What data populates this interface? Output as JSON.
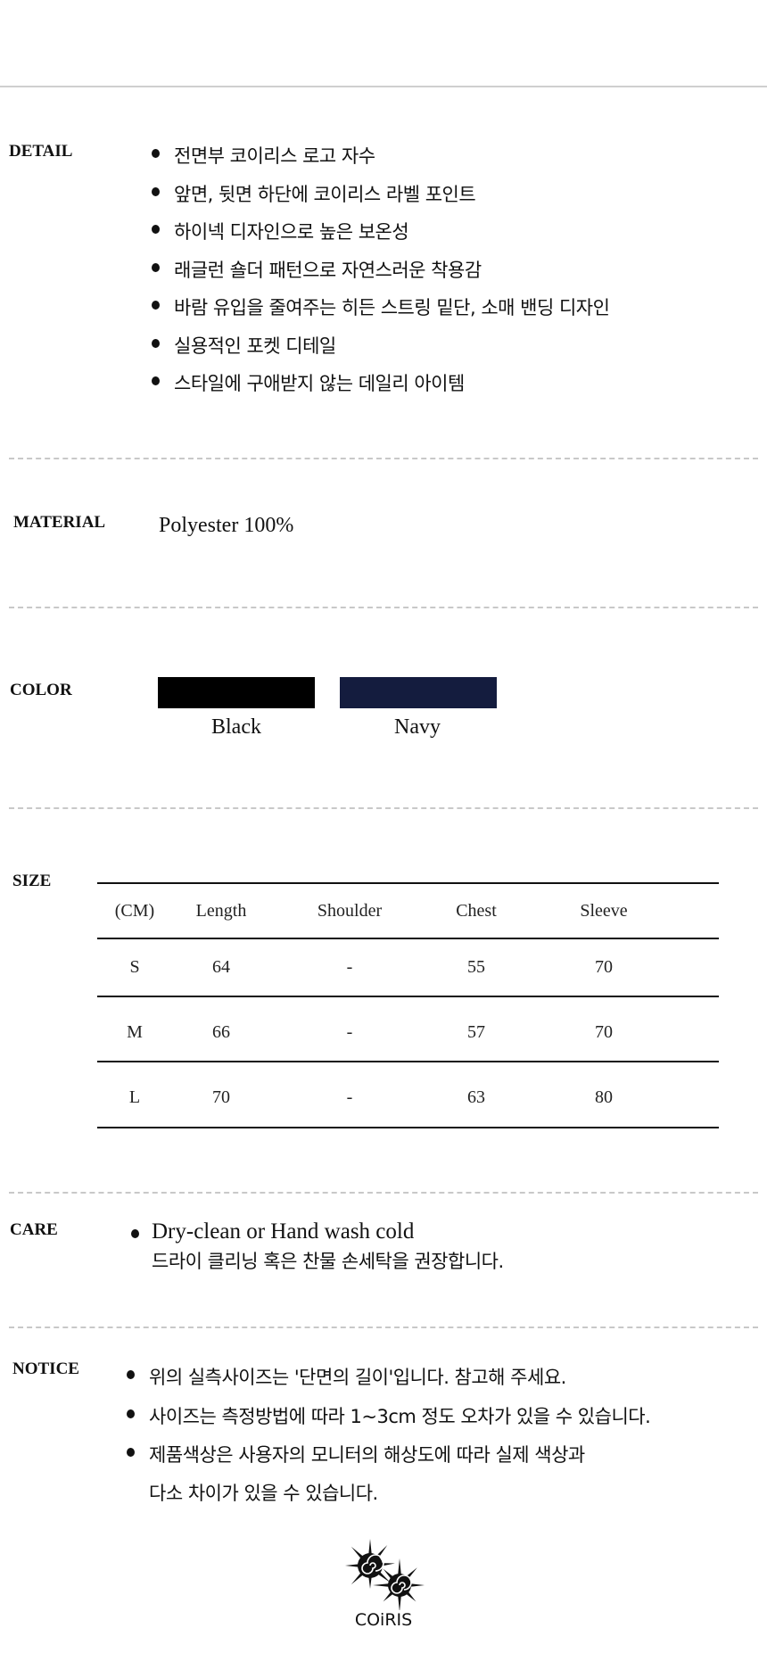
{
  "detail": {
    "label": "DETAIL",
    "items": [
      "전면부 코이리스 로고 자수",
      "앞면, 뒷면 하단에 코이리스 라벨 포인트",
      "하이넥 디자인으로 높은 보온성",
      "래글런 숄더 패턴으로 자연스러운 착용감",
      "바람 유입을 줄여주는 히든 스트링 밑단, 소매 밴딩 디자인",
      "실용적인 포켓 디테일",
      "스타일에 구애받지 않는 데일리 아이템"
    ]
  },
  "material": {
    "label": "MATERIAL",
    "value": "Polyester 100%"
  },
  "color": {
    "label": "COLOR",
    "swatches": [
      {
        "name": "Black",
        "hex": "#000000"
      },
      {
        "name": "Navy",
        "hex": "#141c3e"
      }
    ]
  },
  "size": {
    "label": "SIZE",
    "headers": [
      "(CM)",
      "Length",
      "Shoulder",
      "Chest",
      "Sleeve"
    ],
    "rows": [
      [
        "S",
        "64",
        "-",
        "55",
        "70"
      ],
      [
        "M",
        "66",
        "-",
        "57",
        "70"
      ],
      [
        "L",
        "70",
        "-",
        "63",
        "80"
      ]
    ]
  },
  "care": {
    "label": "CARE",
    "line1": "Dry-clean or Hand wash cold",
    "line2": "드라이 클리닝 혹은 찬물 손세탁을 권장합니다."
  },
  "notice": {
    "label": "NOTICE",
    "items": [
      "위의 실측사이즈는 '단면의 길이'입니다. 참고해 주세요.",
      "사이즈는 측정방법에 따라 1~3cm 정도 오차가 있을 수 있습니다.",
      "제품색상은 사용자의 모니터의 해상도에 따라 실제 색상과"
    ],
    "continuation": "다소 차이가 있을 수 있습니다."
  },
  "logo": {
    "text": "COiRIS"
  }
}
